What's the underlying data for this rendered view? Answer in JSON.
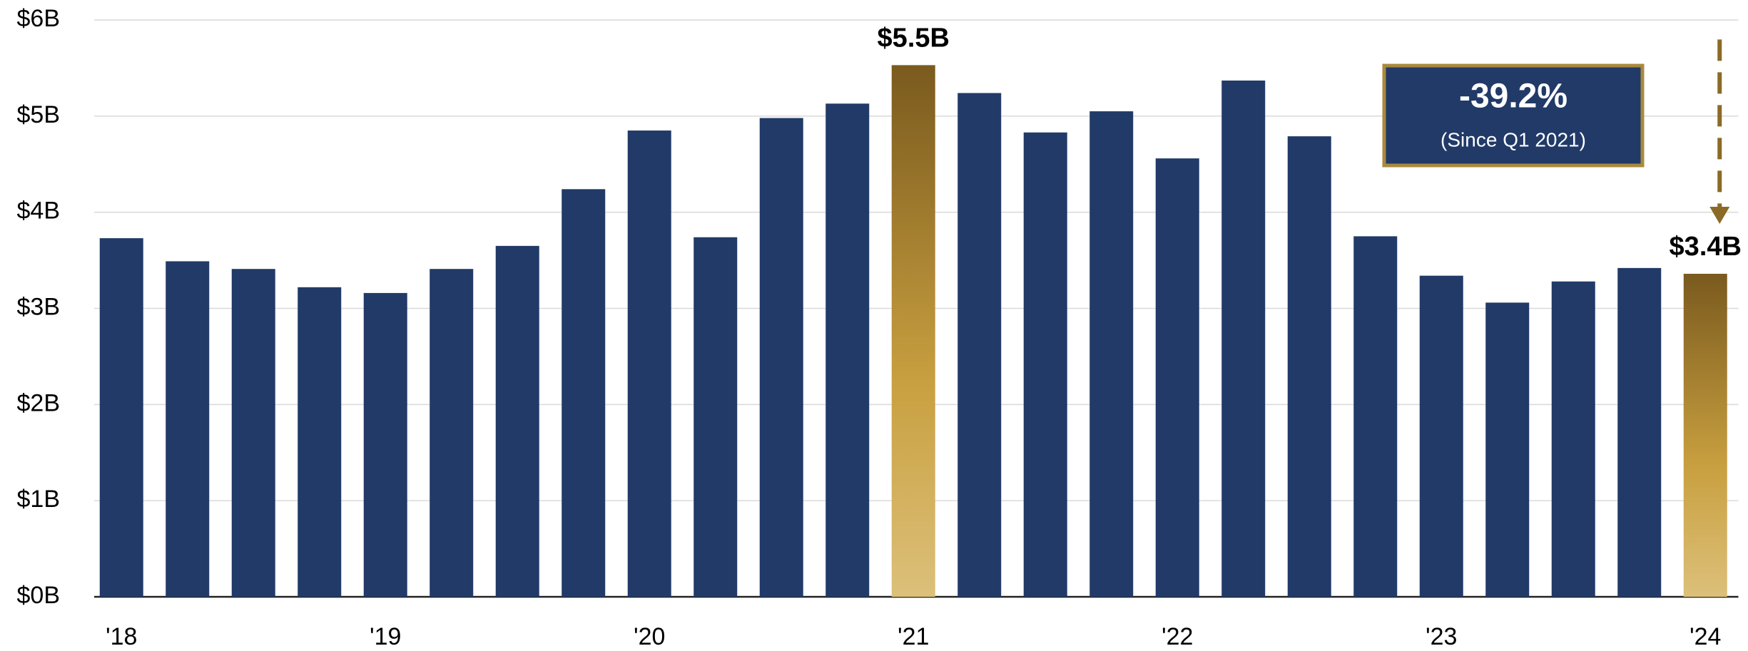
{
  "chart_data": {
    "type": "bar",
    "categories": [
      "'18",
      null,
      null,
      null,
      "'19",
      null,
      null,
      null,
      "'20",
      null,
      null,
      null,
      "'21",
      null,
      null,
      null,
      "'22",
      null,
      null,
      null,
      "'23",
      null,
      null,
      null,
      "'24"
    ],
    "values": [
      3.73,
      3.49,
      3.41,
      3.22,
      3.16,
      3.41,
      3.65,
      4.24,
      4.85,
      3.74,
      4.98,
      5.13,
      5.53,
      5.24,
      4.83,
      5.05,
      4.56,
      5.37,
      4.79,
      3.75,
      3.34,
      3.06,
      3.28,
      3.42,
      3.36
    ],
    "value_labels": [
      null,
      null,
      null,
      null,
      null,
      null,
      null,
      null,
      null,
      null,
      null,
      null,
      "$5.5B",
      null,
      null,
      null,
      null,
      null,
      null,
      null,
      null,
      null,
      null,
      null,
      "$3.4B"
    ],
    "color": "#213a68",
    "highlight_color": "#c9a040",
    "highlight_indices": [
      12,
      24
    ],
    "shaded_range": [
      8,
      9
    ],
    "ylim": [
      0,
      6
    ],
    "yticks": [
      {
        "value": 0,
        "label": "$0B"
      },
      {
        "value": 1,
        "label": "$1B"
      },
      {
        "value": 2,
        "label": "$2B"
      },
      {
        "value": 3,
        "label": "$3B"
      },
      {
        "value": 4,
        "label": "$4B"
      },
      {
        "value": 5,
        "label": "$5B"
      },
      {
        "value": 6,
        "label": "$6B"
      }
    ],
    "grid": true,
    "annotations": {
      "change": "-39.2%",
      "note": "(Since Q1 2021)"
    }
  }
}
